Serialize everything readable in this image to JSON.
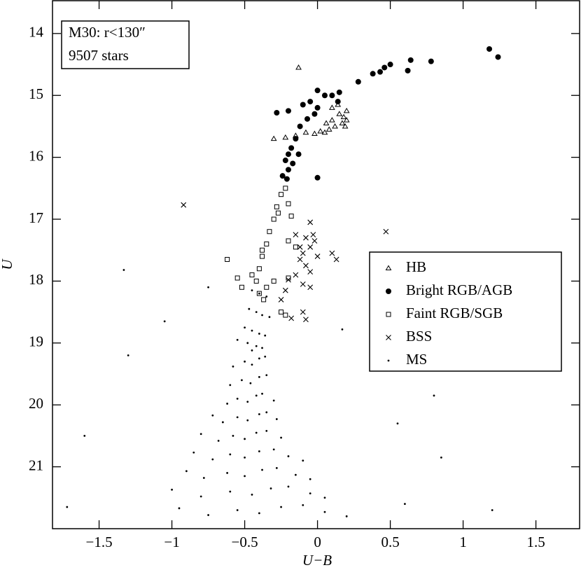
{
  "chart_data": {
    "type": "scatter",
    "annotations": [
      "M30: r<130″",
      "9507 stars"
    ],
    "xlabel": "U−B",
    "ylabel": "U",
    "xlim": [
      -1.82,
      1.8
    ],
    "ylim": [
      22.0,
      13.47
    ],
    "xticks": [
      {
        "value": -1.5,
        "label": "−1.5"
      },
      {
        "value": -1,
        "label": "−1"
      },
      {
        "value": -0.5,
        "label": "−0.5"
      },
      0,
      0.5,
      1,
      1.5
    ],
    "yticks": [
      14,
      15,
      16,
      17,
      18,
      19,
      20,
      21
    ],
    "series": [
      {
        "name": "HB",
        "marker": "triangle",
        "color": "#000000",
        "x": [
          -0.13,
          0.1,
          0.15,
          0.18,
          0.2,
          0.17,
          0.12,
          0.08,
          0.05,
          0.02,
          -0.02,
          -0.08,
          -0.15,
          -0.22,
          -0.3,
          0.2,
          0.14,
          0.1,
          0.19,
          0.06
        ],
        "values": [
          14.55,
          15.2,
          15.3,
          15.35,
          15.4,
          15.45,
          15.5,
          15.55,
          15.6,
          15.58,
          15.62,
          15.6,
          15.65,
          15.68,
          15.7,
          15.25,
          15.15,
          15.4,
          15.5,
          15.45
        ]
      },
      {
        "name": "Bright RGB/AGB",
        "marker": "dot",
        "color": "#000000",
        "x": [
          1.18,
          1.24,
          0.78,
          0.64,
          0.62,
          0.5,
          0.46,
          0.43,
          0.38,
          0.28,
          0.15,
          0.1,
          0.14,
          0.05,
          0.0,
          -0.05,
          -0.1,
          -0.2,
          -0.28,
          0.0,
          -0.02,
          -0.07,
          -0.12,
          -0.15,
          -0.18,
          -0.2,
          -0.22,
          -0.2,
          -0.24,
          -0.21,
          -0.17,
          0.0,
          -0.13
        ],
        "values": [
          14.25,
          14.38,
          14.45,
          14.43,
          14.6,
          14.5,
          14.55,
          14.62,
          14.65,
          14.78,
          14.95,
          15.0,
          15.1,
          15.0,
          14.92,
          15.1,
          15.15,
          15.25,
          15.28,
          15.2,
          15.3,
          15.38,
          15.5,
          15.7,
          15.85,
          15.95,
          16.05,
          16.2,
          16.3,
          16.35,
          16.1,
          16.33,
          15.95
        ]
      },
      {
        "name": "Faint RGB/SGB",
        "marker": "square",
        "color": "#000000",
        "x": [
          -0.22,
          -0.25,
          -0.28,
          -0.3,
          -0.27,
          -0.33,
          -0.35,
          -0.38,
          -0.4,
          -0.42,
          -0.45,
          -0.52,
          -0.55,
          -0.62,
          -0.4,
          -0.37,
          -0.25,
          -0.22,
          -0.2,
          -0.15,
          -0.3,
          -0.35,
          -0.2,
          -0.18,
          -0.2,
          -0.38
        ],
        "values": [
          16.5,
          16.6,
          16.8,
          17.0,
          16.9,
          17.2,
          17.4,
          17.6,
          17.8,
          18.0,
          17.9,
          18.1,
          17.95,
          17.65,
          18.2,
          18.3,
          18.5,
          18.55,
          17.35,
          17.45,
          18.0,
          18.1,
          17.95,
          16.95,
          16.75,
          17.5
        ]
      },
      {
        "name": "BSS",
        "marker": "cross",
        "color": "#000000",
        "x": [
          -0.92,
          -0.05,
          -0.03,
          -0.08,
          -0.05,
          -0.1,
          -0.12,
          -0.08,
          -0.05,
          -0.15,
          -0.2,
          -0.22,
          -0.25,
          -0.1,
          -0.05,
          0.0,
          -0.02,
          -0.15,
          -0.1,
          -0.18,
          0.1,
          0.47,
          -0.08,
          0.13,
          -0.12
        ],
        "values": [
          16.77,
          17.05,
          17.25,
          17.3,
          17.45,
          17.55,
          17.65,
          17.75,
          17.85,
          17.9,
          17.98,
          18.15,
          18.3,
          18.05,
          18.1,
          17.6,
          17.35,
          17.25,
          18.5,
          18.6,
          17.55,
          17.2,
          18.62,
          17.65,
          17.45
        ]
      },
      {
        "name": "MS",
        "marker": "point",
        "color": "#000000",
        "x": [
          -0.4,
          -0.35,
          -0.45,
          -0.42,
          -0.38,
          -0.47,
          -0.33,
          -0.45,
          -0.4,
          -0.5,
          -0.36,
          -0.48,
          -0.42,
          -0.55,
          -0.38,
          -0.45,
          -0.5,
          -0.45,
          -0.4,
          -0.58,
          -0.36,
          -0.52,
          -0.46,
          -0.4,
          -0.6,
          -0.35,
          -0.55,
          -0.48,
          -0.42,
          -0.62,
          -0.38,
          -0.3,
          -0.55,
          -0.48,
          -0.4,
          -0.65,
          -0.35,
          -0.28,
          -0.72,
          -0.58,
          -0.5,
          -0.42,
          -0.68,
          -0.35,
          -0.25,
          -0.8,
          -0.6,
          -0.5,
          -0.4,
          -0.72,
          -0.3,
          -0.2,
          -0.85,
          -0.1,
          -0.62,
          -0.5,
          -0.38,
          -0.78,
          -0.28,
          -0.15,
          -0.9,
          -0.05,
          -0.6,
          -0.45,
          -0.32,
          -0.8,
          -0.2,
          -0.05,
          -1.0,
          0.05,
          -0.55,
          -0.4,
          -0.25,
          -0.75,
          -0.1,
          0.05,
          -0.95,
          0.2,
          -1.72,
          -1.6,
          -1.33,
          -1.3,
          -1.05,
          0.17,
          0.55,
          0.8,
          0.85,
          1.2,
          -0.75,
          0.6
        ],
        "values": [
          18.2,
          18.25,
          18.15,
          18.5,
          18.55,
          18.45,
          18.58,
          18.8,
          18.85,
          18.75,
          18.88,
          19.0,
          19.05,
          18.95,
          19.08,
          19.12,
          19.3,
          19.35,
          19.25,
          19.38,
          19.22,
          19.6,
          19.65,
          19.55,
          19.68,
          19.52,
          19.9,
          19.95,
          19.85,
          19.98,
          19.82,
          19.93,
          20.2,
          20.25,
          20.15,
          20.28,
          20.12,
          20.23,
          20.17,
          20.5,
          20.55,
          20.45,
          20.58,
          20.42,
          20.53,
          20.47,
          20.8,
          20.85,
          20.75,
          20.88,
          20.72,
          20.83,
          20.77,
          20.9,
          21.1,
          21.15,
          21.05,
          21.18,
          21.02,
          21.13,
          21.07,
          21.2,
          21.4,
          21.45,
          21.35,
          21.48,
          21.32,
          21.43,
          21.37,
          21.5,
          21.7,
          21.75,
          21.65,
          21.78,
          21.62,
          21.73,
          21.67,
          21.8,
          21.65,
          20.5,
          17.82,
          19.2,
          18.65,
          18.78,
          20.3,
          19.85,
          20.85,
          21.7,
          18.1,
          21.6
        ]
      }
    ]
  }
}
